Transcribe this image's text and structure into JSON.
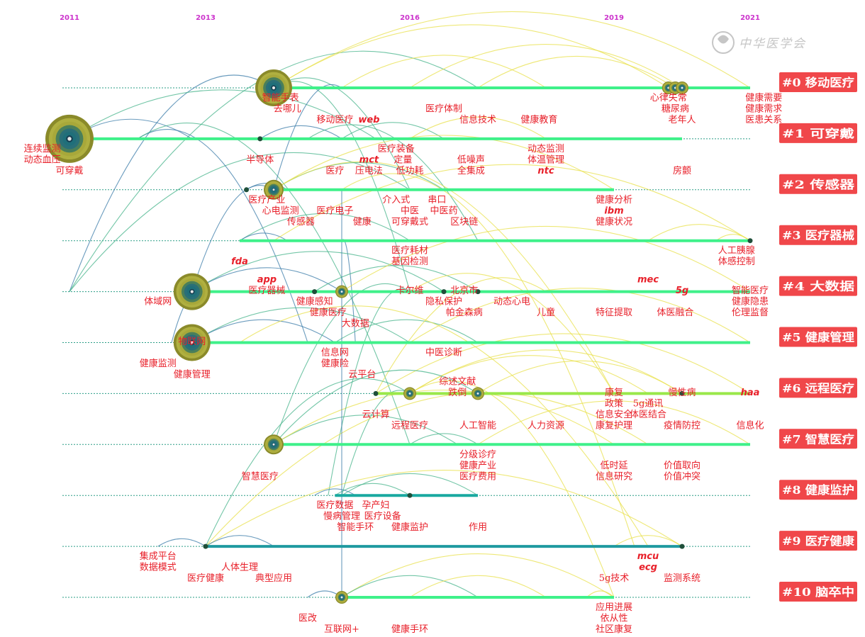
{
  "title": "",
  "journal_mark": "中华医学会",
  "years": [
    "2011",
    "2013",
    "2016",
    "2019",
    "2021"
  ],
  "clusters": [
    {
      "id": "#0",
      "name": "移动医疗"
    },
    {
      "id": "#1",
      "name": "可穿戴"
    },
    {
      "id": "#2",
      "name": "传感器"
    },
    {
      "id": "#3",
      "name": "医疗器械"
    },
    {
      "id": "#4",
      "name": "大数据"
    },
    {
      "id": "#5",
      "name": "健康管理"
    },
    {
      "id": "#6",
      "name": "远程医疗"
    },
    {
      "id": "#7",
      "name": "智慧医疗"
    },
    {
      "id": "#8",
      "name": "健康监护"
    },
    {
      "id": "#9",
      "name": "医疗健康"
    },
    {
      "id": "#10",
      "name": "脑卒中"
    }
  ],
  "keywords": [
    {
      "t": "智能手表",
      "y": 2014.1,
      "c": 0,
      "l": 0
    },
    {
      "t": "去哪儿",
      "y": 2014.2,
      "c": 0,
      "l": 1
    },
    {
      "t": "移动医疗",
      "y": 2014.9,
      "c": 0,
      "l": 2
    },
    {
      "t": "web",
      "y": 2015.4,
      "c": 0,
      "l": 2,
      "i": true
    },
    {
      "t": "医疗体制",
      "y": 2016.5,
      "c": 0,
      "l": 1
    },
    {
      "t": "信息技术",
      "y": 2017.0,
      "c": 0,
      "l": 2
    },
    {
      "t": "健康教育",
      "y": 2017.9,
      "c": 0,
      "l": 2
    },
    {
      "t": "心律失常",
      "y": 2019.8,
      "c": 0,
      "l": 0
    },
    {
      "t": "糖尿病",
      "y": 2019.9,
      "c": 0,
      "l": 1
    },
    {
      "t": "老年人",
      "y": 2020.0,
      "c": 0,
      "l": 2
    },
    {
      "t": "健康需要",
      "y": 2021.2,
      "c": 0,
      "l": 0
    },
    {
      "t": "健康需求",
      "y": 2021.2,
      "c": 0,
      "l": 1
    },
    {
      "t": "医患关系",
      "y": 2021.2,
      "c": 0,
      "l": 2
    },
    {
      "t": "连续监测",
      "y": 2010.6,
      "c": 1,
      "l": 0
    },
    {
      "t": "动态血压",
      "y": 2010.6,
      "c": 1,
      "l": 1
    },
    {
      "t": "可穿戴",
      "y": 2011.0,
      "c": 1,
      "l": 2
    },
    {
      "t": "半导体",
      "y": 2013.8,
      "c": 1,
      "l": 1
    },
    {
      "t": "医疗",
      "y": 2014.9,
      "c": 1,
      "l": 2
    },
    {
      "t": "mct",
      "y": 2015.4,
      "c": 1,
      "l": 1,
      "i": true
    },
    {
      "t": "压电法",
      "y": 2015.4,
      "c": 1,
      "l": 2
    },
    {
      "t": "医疗装备",
      "y": 2015.8,
      "c": 1,
      "l": 0
    },
    {
      "t": "定量",
      "y": 2015.9,
      "c": 1,
      "l": 1
    },
    {
      "t": "低功耗",
      "y": 2016.0,
      "c": 1,
      "l": 2
    },
    {
      "t": "低噪声",
      "y": 2016.9,
      "c": 1,
      "l": 1
    },
    {
      "t": "全集成",
      "y": 2016.9,
      "c": 1,
      "l": 2
    },
    {
      "t": "动态监测",
      "y": 2018.0,
      "c": 1,
      "l": 0
    },
    {
      "t": "体温管理",
      "y": 2018.0,
      "c": 1,
      "l": 1
    },
    {
      "t": "ntc",
      "y": 2018.0,
      "c": 1,
      "l": 2,
      "i": true
    },
    {
      "t": "房颤",
      "y": 2020.0,
      "c": 1,
      "l": 2
    },
    {
      "t": "医疗产业",
      "y": 2013.9,
      "c": 2,
      "l": 0
    },
    {
      "t": "心电监测",
      "y": 2014.1,
      "c": 2,
      "l": 1
    },
    {
      "t": "传感器",
      "y": 2014.4,
      "c": 2,
      "l": 2
    },
    {
      "t": "医疗电子",
      "y": 2014.9,
      "c": 2,
      "l": 1
    },
    {
      "t": "健康",
      "y": 2015.3,
      "c": 2,
      "l": 2
    },
    {
      "t": "介入式",
      "y": 2015.8,
      "c": 2,
      "l": 0
    },
    {
      "t": "中医",
      "y": 2016.0,
      "c": 2,
      "l": 1
    },
    {
      "t": "可穿戴式",
      "y": 2016.0,
      "c": 2,
      "l": 2
    },
    {
      "t": "串口",
      "y": 2016.4,
      "c": 2,
      "l": 0
    },
    {
      "t": "中医药",
      "y": 2016.5,
      "c": 2,
      "l": 1
    },
    {
      "t": "区块链",
      "y": 2016.8,
      "c": 2,
      "l": 2
    },
    {
      "t": "健康分析",
      "y": 2019.0,
      "c": 2,
      "l": 0
    },
    {
      "t": "ibm",
      "y": 2019.0,
      "c": 2,
      "l": 1,
      "i": true
    },
    {
      "t": "健康状况",
      "y": 2019.0,
      "c": 2,
      "l": 2
    },
    {
      "t": "fda",
      "y": 2013.5,
      "c": 3,
      "l": 1,
      "i": true
    },
    {
      "t": "医疗耗材",
      "y": 2016.0,
      "c": 3,
      "l": 0
    },
    {
      "t": "基因检测",
      "y": 2016.0,
      "c": 3,
      "l": 1
    },
    {
      "t": "人工胰腺",
      "y": 2020.8,
      "c": 3,
      "l": 0
    },
    {
      "t": "体感控制",
      "y": 2020.8,
      "c": 3,
      "l": 1
    },
    {
      "t": "app",
      "y": 2013.9,
      "c": 4,
      "l": -2,
      "i": true
    },
    {
      "t": "医疗器械",
      "y": 2013.9,
      "c": 4,
      "l": -1
    },
    {
      "t": "卡尔维",
      "y": 2016.0,
      "c": 4,
      "l": -1
    },
    {
      "t": "北京市",
      "y": 2016.8,
      "c": 4,
      "l": -1
    },
    {
      "t": "mec",
      "y": 2019.5,
      "c": 4,
      "l": -2,
      "i": true
    },
    {
      "t": "5g",
      "y": 2020.0,
      "c": 4,
      "l": -1,
      "i": true
    },
    {
      "t": "智能医疗",
      "y": 2021.0,
      "c": 4,
      "l": -1
    },
    {
      "t": "体域网",
      "y": 2012.3,
      "c": 4,
      "l": 0
    },
    {
      "t": "健康感知",
      "y": 2014.6,
      "c": 4,
      "l": 0
    },
    {
      "t": "健康医疗",
      "y": 2014.8,
      "c": 4,
      "l": 1
    },
    {
      "t": "大数据",
      "y": 2015.2,
      "c": 4,
      "l": 2
    },
    {
      "t": "隐私保护",
      "y": 2016.5,
      "c": 4,
      "l": 0
    },
    {
      "t": "帕金森病",
      "y": 2016.8,
      "c": 4,
      "l": 1
    },
    {
      "t": "动态心电",
      "y": 2017.5,
      "c": 4,
      "l": 0
    },
    {
      "t": "儿童",
      "y": 2018.0,
      "c": 4,
      "l": 1
    },
    {
      "t": "特征提取",
      "y": 2019.0,
      "c": 4,
      "l": 1
    },
    {
      "t": "体医融合",
      "y": 2019.9,
      "c": 4,
      "l": 1
    },
    {
      "t": "健康隐患",
      "y": 2021.0,
      "c": 4,
      "l": 0
    },
    {
      "t": "伦理监督",
      "y": 2021.0,
      "c": 4,
      "l": 1
    },
    {
      "t": "物联网",
      "y": 2012.8,
      "c": 5,
      "l": -1
    },
    {
      "t": "信息网",
      "y": 2014.9,
      "c": 5,
      "l": 0
    },
    {
      "t": "健康险",
      "y": 2014.9,
      "c": 5,
      "l": 1
    },
    {
      "t": "云平台",
      "y": 2015.3,
      "c": 5,
      "l": 2
    },
    {
      "t": "中医诊断",
      "y": 2016.5,
      "c": 5,
      "l": 0
    },
    {
      "t": "健康监测",
      "y": 2012.3,
      "c": 5,
      "l": 1
    },
    {
      "t": "健康管理",
      "y": 2012.8,
      "c": 5,
      "l": 2
    },
    {
      "t": "综述文献",
      "y": 2016.7,
      "c": 6,
      "l": -2
    },
    {
      "t": "跌倒",
      "y": 2016.7,
      "c": 6,
      "l": -1
    },
    {
      "t": "康复",
      "y": 2019.0,
      "c": 6,
      "l": -1
    },
    {
      "t": "慢性病",
      "y": 2020.0,
      "c": 6,
      "l": -1
    },
    {
      "t": "haa",
      "y": 2021.0,
      "c": 6,
      "l": -1,
      "i": true
    },
    {
      "t": "政策",
      "y": 2019.0,
      "c": 6,
      "l": 0
    },
    {
      "t": "5g通讯",
      "y": 2019.5,
      "c": 6,
      "l": 0
    },
    {
      "t": "信息安全",
      "y": 2019.0,
      "c": 6,
      "l": 1
    },
    {
      "t": "体医结合",
      "y": 2019.5,
      "c": 6,
      "l": 1
    },
    {
      "t": "云计算",
      "y": 2015.5,
      "c": 6,
      "l": 1
    },
    {
      "t": "远程医疗",
      "y": 2016.0,
      "c": 6,
      "l": 2
    },
    {
      "t": "人工智能",
      "y": 2017.0,
      "c": 6,
      "l": 2
    },
    {
      "t": "人力资源",
      "y": 2018.0,
      "c": 6,
      "l": 2
    },
    {
      "t": "康复护理",
      "y": 2019.0,
      "c": 6,
      "l": 2
    },
    {
      "t": "疫情防控",
      "y": 2020.0,
      "c": 6,
      "l": 2
    },
    {
      "t": "信息化",
      "y": 2021.0,
      "c": 6,
      "l": 2
    },
    {
      "t": "分级诊疗",
      "y": 2017.0,
      "c": 7,
      "l": 0
    },
    {
      "t": "健康产业",
      "y": 2017.0,
      "c": 7,
      "l": 1
    },
    {
      "t": "医疗费用",
      "y": 2017.0,
      "c": 7,
      "l": 2
    },
    {
      "t": "低时延",
      "y": 2019.0,
      "c": 7,
      "l": 1
    },
    {
      "t": "信息研究",
      "y": 2019.0,
      "c": 7,
      "l": 2
    },
    {
      "t": "价值取向",
      "y": 2020.0,
      "c": 7,
      "l": 1
    },
    {
      "t": "价值冲突",
      "y": 2020.0,
      "c": 7,
      "l": 2
    },
    {
      "t": "智慧医疗",
      "y": 2013.8,
      "c": 7,
      "l": 2
    },
    {
      "t": "医疗数据",
      "y": 2014.9,
      "c": 8,
      "l": 0
    },
    {
      "t": "孕产妇",
      "y": 2015.5,
      "c": 8,
      "l": 0
    },
    {
      "t": "慢病管理",
      "y": 2015.0,
      "c": 8,
      "l": 1
    },
    {
      "t": "医疗设备",
      "y": 2015.6,
      "c": 8,
      "l": 1
    },
    {
      "t": "智能手环",
      "y": 2015.2,
      "c": 8,
      "l": 2
    },
    {
      "t": "健康监护",
      "y": 2016.0,
      "c": 8,
      "l": 2
    },
    {
      "t": "作用",
      "y": 2017.0,
      "c": 8,
      "l": 2
    },
    {
      "t": "mcu",
      "y": 2019.5,
      "c": 9,
      "l": 0,
      "i": true
    },
    {
      "t": "集成平台",
      "y": 2012.3,
      "c": 9,
      "l": 0
    },
    {
      "t": "数据模式",
      "y": 2012.3,
      "c": 9,
      "l": 1
    },
    {
      "t": "人体生理",
      "y": 2013.5,
      "c": 9,
      "l": 1
    },
    {
      "t": "ecg",
      "y": 2019.5,
      "c": 9,
      "l": 1,
      "i": true
    },
    {
      "t": "医疗健康",
      "y": 2013.0,
      "c": 9,
      "l": 2
    },
    {
      "t": "典型应用",
      "y": 2014.0,
      "c": 9,
      "l": 2
    },
    {
      "t": "5g技术",
      "y": 2019.0,
      "c": 9,
      "l": 2
    },
    {
      "t": "监测系统",
      "y": 2020.0,
      "c": 9,
      "l": 2
    },
    {
      "t": "应用进展",
      "y": 2019.0,
      "c": 10,
      "l": 0
    },
    {
      "t": "医改",
      "y": 2014.5,
      "c": 10,
      "l": 1
    },
    {
      "t": "依从性",
      "y": 2019.0,
      "c": 10,
      "l": 1
    },
    {
      "t": "互联网+",
      "y": 2015.0,
      "c": 10,
      "l": 2
    },
    {
      "t": "健康手环",
      "y": 2016.0,
      "c": 10,
      "l": 2
    },
    {
      "t": "社区康复",
      "y": 2019.0,
      "c": 10,
      "l": 2
    }
  ],
  "nodes": [
    {
      "c": 0,
      "y": 2014.0,
      "size": "large"
    },
    {
      "c": 0,
      "y": 2019.8,
      "size": "small"
    },
    {
      "c": 0,
      "y": 2019.9,
      "size": "small"
    },
    {
      "c": 0,
      "y": 2020.0,
      "size": "small"
    },
    {
      "c": 1,
      "y": 2011.0,
      "size": "xlarge"
    },
    {
      "c": 1,
      "y": 2013.8,
      "size": "dot"
    },
    {
      "c": 2,
      "y": 2014.0,
      "size": "medium"
    },
    {
      "c": 2,
      "y": 2013.6,
      "size": "dot"
    },
    {
      "c": 3,
      "y": 2021.0,
      "size": "dot"
    },
    {
      "c": 4,
      "y": 2012.8,
      "size": "large"
    },
    {
      "c": 4,
      "y": 2015.0,
      "size": "small"
    },
    {
      "c": 4,
      "y": 2014.6,
      "size": "dot"
    },
    {
      "c": 4,
      "y": 2016.5,
      "size": "dot"
    },
    {
      "c": 4,
      "y": 2017.0,
      "size": "dot"
    },
    {
      "c": 5,
      "y": 2012.8,
      "size": "large"
    },
    {
      "c": 6,
      "y": 2016.0,
      "size": "small"
    },
    {
      "c": 6,
      "y": 2017.0,
      "size": "small"
    },
    {
      "c": 6,
      "y": 2015.5,
      "size": "dot"
    },
    {
      "c": 6,
      "y": 2020.0,
      "size": "dot"
    },
    {
      "c": 7,
      "y": 2014.0,
      "size": "medium"
    },
    {
      "c": 8,
      "y": 2016.0,
      "size": "dot"
    },
    {
      "c": 9,
      "y": 2013.0,
      "size": "dot"
    },
    {
      "c": 9,
      "y": 2020.0,
      "size": "dot"
    },
    {
      "c": 10,
      "y": 2015.0,
      "size": "small"
    }
  ],
  "spans": [
    {
      "c": 0,
      "from": 2014.0,
      "to": 2021.0,
      "color": "#3ff18a"
    },
    {
      "c": 1,
      "from": 2011.0,
      "to": 2020.0,
      "color": "#3ff18a"
    },
    {
      "c": 2,
      "from": 2014.0,
      "to": 2019.0,
      "color": "#3ff18a"
    },
    {
      "c": 3,
      "from": 2013.5,
      "to": 2021.0,
      "color": "#3ff18a"
    },
    {
      "c": 4,
      "from": 2012.8,
      "to": 2021.0,
      "color": "#3ff18a"
    },
    {
      "c": 5,
      "from": 2012.8,
      "to": 2021.0,
      "color": "#3ff18a"
    },
    {
      "c": 6,
      "from": 2015.5,
      "to": 2021.0,
      "color": "#9ae84a"
    },
    {
      "c": 7,
      "from": 2014.0,
      "to": 2021.0,
      "color": "#3ff18a"
    },
    {
      "c": 8,
      "from": 2014.9,
      "to": 2017.0,
      "color": "#19a9a0"
    },
    {
      "c": 9,
      "from": 2013.0,
      "to": 2020.0,
      "color": "#1f9aa0"
    },
    {
      "c": 10,
      "from": 2015.0,
      "to": 2019.0,
      "color": "#3ff18a"
    }
  ],
  "links": [
    [
      4,
      2011.0,
      0,
      2014.0
    ],
    [
      4,
      2011.0,
      0,
      2017.0
    ],
    [
      4,
      2011.0,
      2,
      2016.0
    ],
    [
      1,
      2011.0,
      1,
      2015.5
    ],
    [
      1,
      2011.0,
      1,
      2012.8
    ],
    [
      0,
      2014.0,
      0,
      2021.0
    ],
    [
      0,
      2014.0,
      0,
      2019.8
    ],
    [
      0,
      2014.0,
      2,
      2016.0
    ],
    [
      0,
      2016.0,
      0,
      2020.0
    ],
    [
      0,
      2014.0,
      4,
      2016.0
    ],
    [
      0,
      2017.0,
      0,
      2019.9
    ],
    [
      0,
      2015.0,
      0,
      2018.0
    ],
    [
      1,
      2013.8,
      1,
      2015.0
    ],
    [
      1,
      2015.0,
      1,
      2016.5
    ],
    [
      1,
      2016.0,
      1,
      2018.0
    ],
    [
      1,
      2014.5,
      3,
      2017.0
    ],
    [
      1,
      2012.0,
      5,
      2014.5
    ],
    [
      1,
      2012.0,
      7,
      2016.0
    ],
    [
      2,
      2014.0,
      2,
      2016.5
    ],
    [
      2,
      2014.0,
      2,
      2019.0
    ],
    [
      2,
      2014.0,
      6,
      2019.0
    ],
    [
      2,
      2013.6,
      2,
      2014.2
    ],
    [
      2,
      2015.0,
      9,
      2019.3
    ],
    [
      2,
      2014.0,
      0,
      2015.0
    ],
    [
      3,
      2013.5,
      3,
      2016.0
    ],
    [
      3,
      2013.5,
      3,
      2014.2
    ],
    [
      3,
      2020.5,
      3,
      2021.0
    ],
    [
      3,
      2019.5,
      3,
      2021.0
    ],
    [
      3,
      2014.0,
      3,
      2021.0
    ],
    [
      3,
      2015.0,
      5,
      2015.2
    ],
    [
      4,
      2012.8,
      4,
      2016.5
    ],
    [
      4,
      2012.8,
      4,
      2015.0
    ],
    [
      4,
      2014.6,
      4,
      2017.0
    ],
    [
      4,
      2015.0,
      4,
      2021.0
    ],
    [
      4,
      2012.8,
      2,
      2014.0
    ],
    [
      4,
      2016.0,
      6,
      2019.0
    ],
    [
      5,
      2012.8,
      5,
      2016.0
    ],
    [
      5,
      2012.8,
      5,
      2014.9
    ],
    [
      5,
      2014.9,
      5,
      2017.0
    ],
    [
      5,
      2013.5,
      9,
      2019.5
    ],
    [
      5,
      2012.5,
      4,
      2013.0
    ],
    [
      5,
      2016.0,
      5,
      2021.0
    ],
    [
      6,
      2015.5,
      6,
      2021.0
    ],
    [
      6,
      2016.0,
      6,
      2019.5
    ],
    [
      6,
      2016.0,
      6,
      2020.0
    ],
    [
      6,
      2017.0,
      6,
      2020.0
    ],
    [
      6,
      2015.5,
      4,
      2018.0
    ],
    [
      6,
      2016.0,
      10,
      2019.0
    ],
    [
      7,
      2014.0,
      7,
      2016.7
    ],
    [
      7,
      2014.0,
      7,
      2019.0
    ],
    [
      7,
      2014.0,
      4,
      2016.0
    ],
    [
      7,
      2016.0,
      7,
      2017.0
    ],
    [
      7,
      2017.0,
      7,
      2021.0
    ],
    [
      7,
      2014.0,
      6,
      2017.0
    ],
    [
      8,
      2014.9,
      8,
      2016.0
    ],
    [
      8,
      2014.6,
      8,
      2015.2
    ],
    [
      8,
      2015.0,
      8,
      2017.0
    ],
    [
      8,
      2015.0,
      6,
      2016.0
    ],
    [
      8,
      2014.8,
      4,
      2016.0
    ],
    [
      9,
      2013.0,
      9,
      2020.0
    ],
    [
      9,
      2012.3,
      9,
      2013.0
    ],
    [
      9,
      2013.0,
      9,
      2014.0
    ],
    [
      9,
      2013.0,
      7,
      2019.5
    ],
    [
      9,
      2013.0,
      6,
      2016.0
    ],
    [
      9,
      2019.0,
      9,
      2020.0
    ],
    [
      10,
      2015.0,
      10,
      2019.0
    ],
    [
      10,
      2014.5,
      10,
      2015.0
    ],
    [
      10,
      2015.0,
      10,
      2017.0
    ],
    [
      10,
      2015.0,
      2,
      2015.0
    ],
    [
      10,
      2016.0,
      10,
      2018.0
    ],
    [
      10,
      2018.6,
      10,
      2019.0
    ]
  ],
  "colors": {
    "year": "#cc33cc",
    "keyword": "#e8202a",
    "label_box": "#f0474a",
    "label_text": "#ffffff",
    "dotted": "#2a9d86",
    "link_old": "#3a7ba8",
    "link_mid": "#44b38a",
    "link_new": "#e8e04a",
    "node_ring_outer": "#a8a83a",
    "node_ring_inner": "#1f6f7a"
  }
}
